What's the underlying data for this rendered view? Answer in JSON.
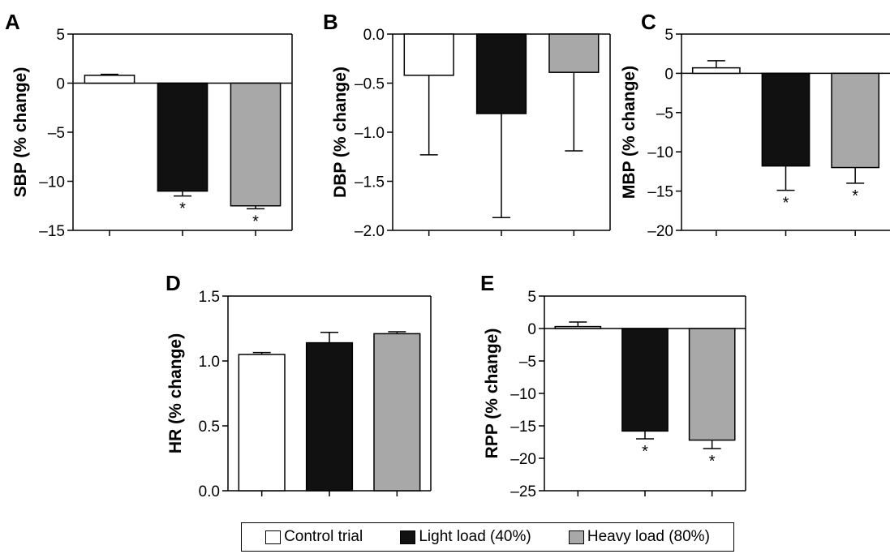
{
  "legend": {
    "items": [
      {
        "label": "Control trial",
        "color": "#ffffff"
      },
      {
        "label": "Light load (40%)",
        "color": "#111111"
      },
      {
        "label": "Heavy load (80%)",
        "color": "#a8a8a8"
      }
    ]
  },
  "chart_data": [
    {
      "type": "bar",
      "panel": "A",
      "ylabel": "SBP (% change)",
      "ylim": [
        -15,
        5
      ],
      "yticks": [
        5,
        0,
        -5,
        -10,
        -15
      ],
      "yticklabels": [
        "5",
        "0",
        "–5",
        "–10",
        "–15"
      ],
      "categories": [
        "Control trial",
        "Light load (40%)",
        "Heavy load (80%)"
      ],
      "values": [
        0.8,
        -11.0,
        -12.5
      ],
      "errors": [
        0.1,
        0.5,
        0.3
      ],
      "significance": [
        "",
        "*",
        "*"
      ]
    },
    {
      "type": "bar",
      "panel": "B",
      "ylabel": "DBP (% change)",
      "ylim": [
        -2.0,
        0.0
      ],
      "yticks": [
        0.0,
        -0.5,
        -1.0,
        -1.5,
        -2.0
      ],
      "yticklabels": [
        "0.0",
        "–0.5",
        "–1.0",
        "–1.5",
        "–2.0"
      ],
      "categories": [
        "Control trial",
        "Light load (40%)",
        "Heavy load (80%)"
      ],
      "values": [
        -0.42,
        -0.81,
        -0.39
      ],
      "errors": [
        0.81,
        1.06,
        0.8
      ],
      "significance": [
        "",
        "",
        ""
      ]
    },
    {
      "type": "bar",
      "panel": "C",
      "ylabel": "MBP (% change)",
      "ylim": [
        -20,
        5
      ],
      "yticks": [
        5,
        0,
        -5,
        -10,
        -15,
        -20
      ],
      "yticklabels": [
        "5",
        "0",
        "–5",
        "–10",
        "–15",
        "–20"
      ],
      "categories": [
        "Control trial",
        "Light load (40%)",
        "Heavy load (80%)"
      ],
      "values": [
        0.7,
        -11.8,
        -12.0
      ],
      "errors": [
        0.9,
        3.1,
        2.0
      ],
      "significance": [
        "",
        "*",
        "*"
      ]
    },
    {
      "type": "bar",
      "panel": "D",
      "ylabel": "HR (% change)",
      "ylim": [
        0.0,
        1.5
      ],
      "yticks": [
        0.0,
        0.5,
        1.0,
        1.5
      ],
      "yticklabels": [
        "0.0",
        "0.5",
        "1.0",
        "1.5"
      ],
      "categories": [
        "Control trial",
        "Light load (40%)",
        "Heavy load (80%)"
      ],
      "values": [
        1.05,
        1.14,
        1.21
      ],
      "errors": [
        0.015,
        0.08,
        0.015
      ],
      "significance": [
        "",
        "",
        ""
      ]
    },
    {
      "type": "bar",
      "panel": "E",
      "ylabel": "RPP (% change)",
      "ylim": [
        -25,
        5
      ],
      "yticks": [
        5,
        0,
        -5,
        -10,
        -15,
        -20,
        -25
      ],
      "yticklabels": [
        "5",
        "0",
        "–5",
        "–10",
        "–15",
        "–20",
        "–25"
      ],
      "categories": [
        "Control trial",
        "Light load (40%)",
        "Heavy load (80%)"
      ],
      "values": [
        0.3,
        -15.8,
        -17.2
      ],
      "errors": [
        0.7,
        1.2,
        1.3
      ],
      "significance": [
        "",
        "*",
        "*"
      ]
    }
  ]
}
